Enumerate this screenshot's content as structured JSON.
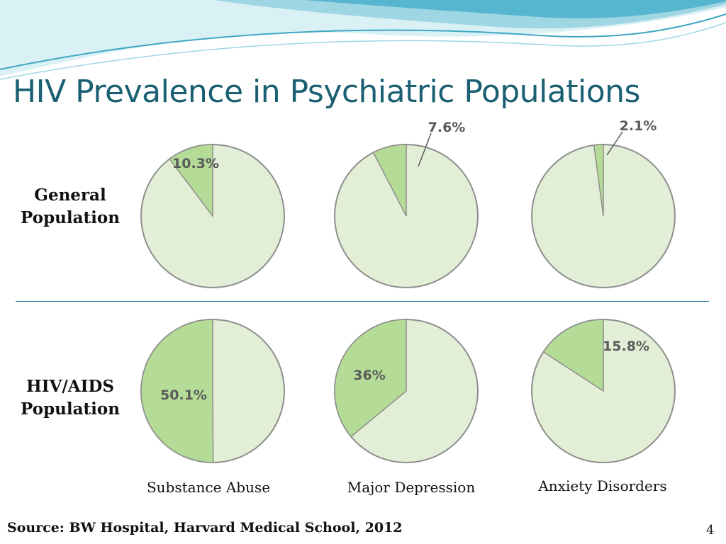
{
  "slide": {
    "title": "HIV Prevalence in Psychiatric Populations",
    "row_labels": [
      "General Population",
      "HIV/AIDS Population"
    ],
    "source": "Source: BW Hospital, Harvard Medical School, 2012",
    "page_number": "4"
  },
  "colors": {
    "title": "#1a5f72",
    "pie_base": "#e2efd6",
    "pie_slice": "#b5dc97",
    "pie_stroke": "#8e8e8e",
    "pie_label": "#5a5a5a",
    "divider": "#2e7fa3",
    "banner_light": "#d9f0f4",
    "banner_mid": "#9fd6e4",
    "banner_dark": "#3fa6c3"
  },
  "chart_data": {
    "type": "pie",
    "categories": [
      "Substance Abuse",
      "Major Depression",
      "Anxiety Disorders"
    ],
    "series": [
      {
        "name": "General Population",
        "values": [
          10.3,
          7.6,
          2.1
        ],
        "labels": [
          "10.3%",
          "7.6%",
          "2.1%"
        ]
      },
      {
        "name": "HIV/AIDS Population",
        "values": [
          50.1,
          36,
          15.8
        ],
        "labels": [
          "50.1%",
          "36%",
          "15.8%"
        ]
      }
    ],
    "slice_direction": "counterclockwise from 12 o'clock",
    "legend": "none"
  }
}
